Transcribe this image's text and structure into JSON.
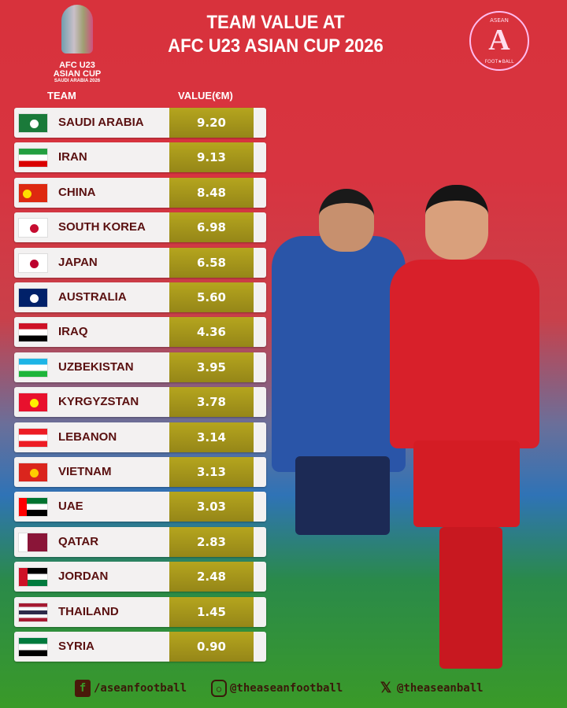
{
  "header": {
    "title_line1": "TEAM VALUE AT",
    "title_line2": "AFC U23 ASIAN CUP 2026",
    "logo_text": [
      "AFC U23",
      "ASIAN CUP",
      "SAUDI ARABIA 2026"
    ],
    "badge_text": [
      "ASEAN",
      "A",
      "FOOT★BALL"
    ]
  },
  "colors": {
    "background_top": "#d8323c",
    "row_bg": "#f3f1f1",
    "value_bg": "#a89a1c",
    "team_text": "#5a1010"
  },
  "chart_data": {
    "type": "table",
    "columns": [
      "TEAM",
      "VALUE(€M)"
    ],
    "rows": [
      {
        "team": "SAUDI ARABIA",
        "value": "9.20",
        "flag": [
          "#1a7a3a",
          "#1a7a3a"
        ]
      },
      {
        "team": "IRAN",
        "value": "9.13",
        "flag": [
          "#239f40",
          "#ffffff",
          "#da0000"
        ]
      },
      {
        "team": "CHINA",
        "value": "8.48",
        "flag": [
          "#de2910",
          "#de2910"
        ]
      },
      {
        "team": "SOUTH KOREA",
        "value": "6.98",
        "flag": [
          "#ffffff",
          "#ffffff"
        ]
      },
      {
        "team": "JAPAN",
        "value": "6.58",
        "flag": [
          "#ffffff",
          "#ffffff"
        ]
      },
      {
        "team": "AUSTRALIA",
        "value": "5.60",
        "flag": [
          "#012169",
          "#012169"
        ]
      },
      {
        "team": "IRAQ",
        "value": "4.36",
        "flag": [
          "#ce1126",
          "#ffffff",
          "#000000"
        ]
      },
      {
        "team": "UZBEKISTAN",
        "value": "3.95",
        "flag": [
          "#1eb5e6",
          "#ffffff",
          "#1eb53a"
        ]
      },
      {
        "team": "KYRGYZSTAN",
        "value": "3.78",
        "flag": [
          "#e8112d",
          "#e8112d"
        ]
      },
      {
        "team": "LEBANON",
        "value": "3.14",
        "flag": [
          "#ed1c24",
          "#ffffff",
          "#ed1c24"
        ]
      },
      {
        "team": "VIETNAM",
        "value": "3.13",
        "flag": [
          "#da251d",
          "#da251d"
        ]
      },
      {
        "team": "UAE",
        "value": "3.03",
        "flag": [
          "#00732f",
          "#ffffff",
          "#000000"
        ]
      },
      {
        "team": "QATAR",
        "value": "2.83",
        "flag": [
          "#8a1538",
          "#8a1538"
        ]
      },
      {
        "team": "JORDAN",
        "value": "2.48",
        "flag": [
          "#000000",
          "#ffffff",
          "#007a3d"
        ]
      },
      {
        "team": "THAILAND",
        "value": "1.45",
        "flag": [
          "#a51931",
          "#f4f5f8",
          "#2d2a4a",
          "#f4f5f8",
          "#a51931"
        ]
      },
      {
        "team": "SYRIA",
        "value": "0.90",
        "flag": [
          "#007a3d",
          "#ffffff",
          "#000000"
        ]
      }
    ]
  },
  "footer": {
    "facebook": "/aseanfootball",
    "instagram": "@theaseanfootball",
    "x": "@theaseanball"
  }
}
